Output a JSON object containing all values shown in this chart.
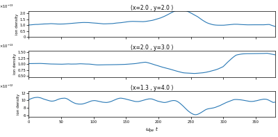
{
  "title1": "(x=2.0 , y=2.0 )",
  "title2": "(x=2.0 , y=3.0 )",
  "title3": "(x=1.3 , y=4.0 )",
  "xlabel": "\\omega_{pe} t",
  "ylabel": "ion density",
  "xmax": 380,
  "line_color": "#2878b5",
  "line_width": 0.8,
  "panel1_ylim": [
    0,
    2.2e-13
  ],
  "panel2_ylim": [
    4.5e-14,
    1.55e-13
  ],
  "panel3_ylim": [
    5.5e-12,
    1.25e-11
  ]
}
